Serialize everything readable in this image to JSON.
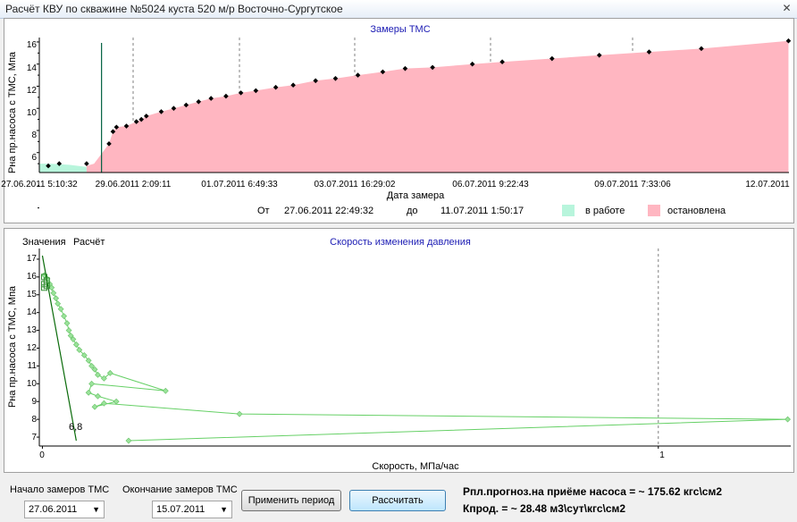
{
  "window": {
    "title": "Расчёт КВУ по скважине №5024 куста 520 м/р Восточно-Сургутское",
    "close_glyph": "✕"
  },
  "top_chart": {
    "title": "Замеры ТМС",
    "ylabel": "Рна пр.насоса с ТМС, Мпа",
    "xlabel": "Дата замера",
    "y_ticks": [
      "6",
      "8",
      "10",
      "12",
      "14",
      "16"
    ],
    "x_ticks": [
      "27.06.2011 5:10:32",
      "29.06.2011 2:09:11",
      "01.07.2011 6:49:33",
      "03.07.2011 16:29:02",
      "06.07.2011 9:22:43",
      "09.07.2011 7:33:06",
      "12.07.2011"
    ],
    "period_from_label": "От",
    "period_from": "27.06.2011 22:49:32",
    "period_to_label": "до",
    "period_to": "11.07.2011 1:50:17",
    "legend": [
      {
        "label": "в работе",
        "color": "#b8f5dc"
      },
      {
        "label": "остановлена",
        "color": "#ffb6c1"
      }
    ]
  },
  "chart_data": [
    {
      "type": "area",
      "title": "Замеры ТМС",
      "xlabel": "Дата замера",
      "ylabel": "Рна пр.насоса с ТМС, Мпа",
      "x_unit": "days since 27.06.2011 0:00",
      "ylim": [
        4.2,
        16.4
      ],
      "xlim": [
        0.0,
        15.06
      ],
      "series": [
        {
          "name": "в работе",
          "x": [
            0.0,
            0.2,
            0.6,
            0.95
          ],
          "values": [
            5.0,
            5.0,
            4.9,
            4.7
          ]
        },
        {
          "name": "остановлена",
          "x": [
            0.95,
            1.1,
            1.4,
            1.48,
            1.55,
            1.75,
            1.95,
            2.05,
            2.15,
            2.45,
            2.7,
            2.95,
            3.2,
            3.45,
            3.75,
            4.05,
            4.35,
            4.75,
            5.1,
            5.55,
            5.95,
            6.4,
            6.9,
            7.35,
            7.9,
            8.7,
            9.3,
            10.3,
            11.25,
            12.25,
            13.3,
            15.05
          ],
          "values": [
            4.8,
            5.0,
            6.8,
            7.9,
            8.3,
            8.4,
            8.8,
            9.0,
            9.3,
            9.7,
            10.0,
            10.3,
            10.6,
            10.9,
            11.1,
            11.4,
            11.6,
            11.9,
            12.1,
            12.5,
            12.7,
            13.0,
            13.3,
            13.6,
            13.7,
            14.0,
            14.2,
            14.5,
            14.8,
            15.1,
            15.4,
            16.1
          ]
        }
      ],
      "markers": {
        "x": [
          0.18,
          0.4,
          0.95,
          1.4,
          1.48,
          1.55,
          1.75,
          1.95,
          2.05,
          2.15,
          2.45,
          2.7,
          2.95,
          3.2,
          3.45,
          3.75,
          4.05,
          4.35,
          4.75,
          5.1,
          5.55,
          5.95,
          6.4,
          6.9,
          7.35,
          7.9,
          8.7,
          9.3,
          10.3,
          11.25,
          12.25,
          13.3,
          15.05
        ],
        "values": [
          4.8,
          5.0,
          5.0,
          6.8,
          7.9,
          8.3,
          8.4,
          8.8,
          9.0,
          9.3,
          9.7,
          10.0,
          10.3,
          10.6,
          10.9,
          11.1,
          11.4,
          11.6,
          11.9,
          12.1,
          12.5,
          12.7,
          13.0,
          13.3,
          13.6,
          13.7,
          14.0,
          14.2,
          14.5,
          14.8,
          15.1,
          15.4,
          16.1
        ]
      },
      "vline_x": 1.25
    },
    {
      "type": "scatter",
      "title": "Скорость изменения давления",
      "xlabel": "Скорость, МПа/час",
      "ylabel": "Рна пр.насоса с ТМС, Мпа",
      "xlim": [
        -0.005,
        1.215
      ],
      "ylim": [
        6.5,
        17.6
      ],
      "x": [
        0.003,
        0.008,
        0.012,
        0.015,
        0.018,
        0.022,
        0.025,
        0.03,
        0.035,
        0.04,
        0.043,
        0.046,
        0.05,
        0.055,
        0.06,
        0.068,
        0.075,
        0.08,
        0.085,
        0.09,
        0.1,
        0.11,
        0.2,
        0.08,
        0.075,
        0.09,
        0.12,
        0.085,
        0.1,
        0.32,
        1.21,
        0.14
      ],
      "values": [
        16.1,
        15.9,
        15.6,
        15.4,
        15.1,
        14.8,
        14.5,
        14.2,
        13.8,
        13.4,
        13.0,
        12.7,
        12.5,
        12.2,
        11.9,
        11.6,
        11.3,
        11.0,
        10.8,
        10.5,
        10.3,
        10.6,
        9.6,
        10.0,
        9.5,
        9.3,
        9.0,
        8.7,
        8.9,
        8.3,
        8.0,
        6.8
      ],
      "fit_line": {
        "x": [
          0.0,
          0.055
        ],
        "values": [
          17.2,
          6.8
        ]
      },
      "fit_end_label": "6,8",
      "y_ticks": [
        "7",
        "8",
        "9",
        "10",
        "11",
        "12",
        "13",
        "14",
        "15",
        "16",
        "17"
      ],
      "x_ticks": [
        "0",
        "1"
      ]
    }
  ],
  "bottom_chart": {
    "title": "Скорость изменения давления",
    "ylabel": "Рна пр.насоса с ТМС, Мпа",
    "xlabel": "Скорость, МПа/час",
    "col1": "Значения",
    "col2": "Расчёт"
  },
  "controls": {
    "start_label": "Начало замеров ТМС",
    "start_value": "27.06.2011",
    "end_label": "Окончание замеров ТМС",
    "end_value": "15.07.2011",
    "apply_label": "Применить период",
    "calc_label": "Рассчитать",
    "result1": "Рпл.прогноз.на приёме насоса = ~ 175.62 кгс\\см2",
    "result2": "Кпрод. = ~ 28.48 м3\\сут\\кгс\\см2"
  }
}
